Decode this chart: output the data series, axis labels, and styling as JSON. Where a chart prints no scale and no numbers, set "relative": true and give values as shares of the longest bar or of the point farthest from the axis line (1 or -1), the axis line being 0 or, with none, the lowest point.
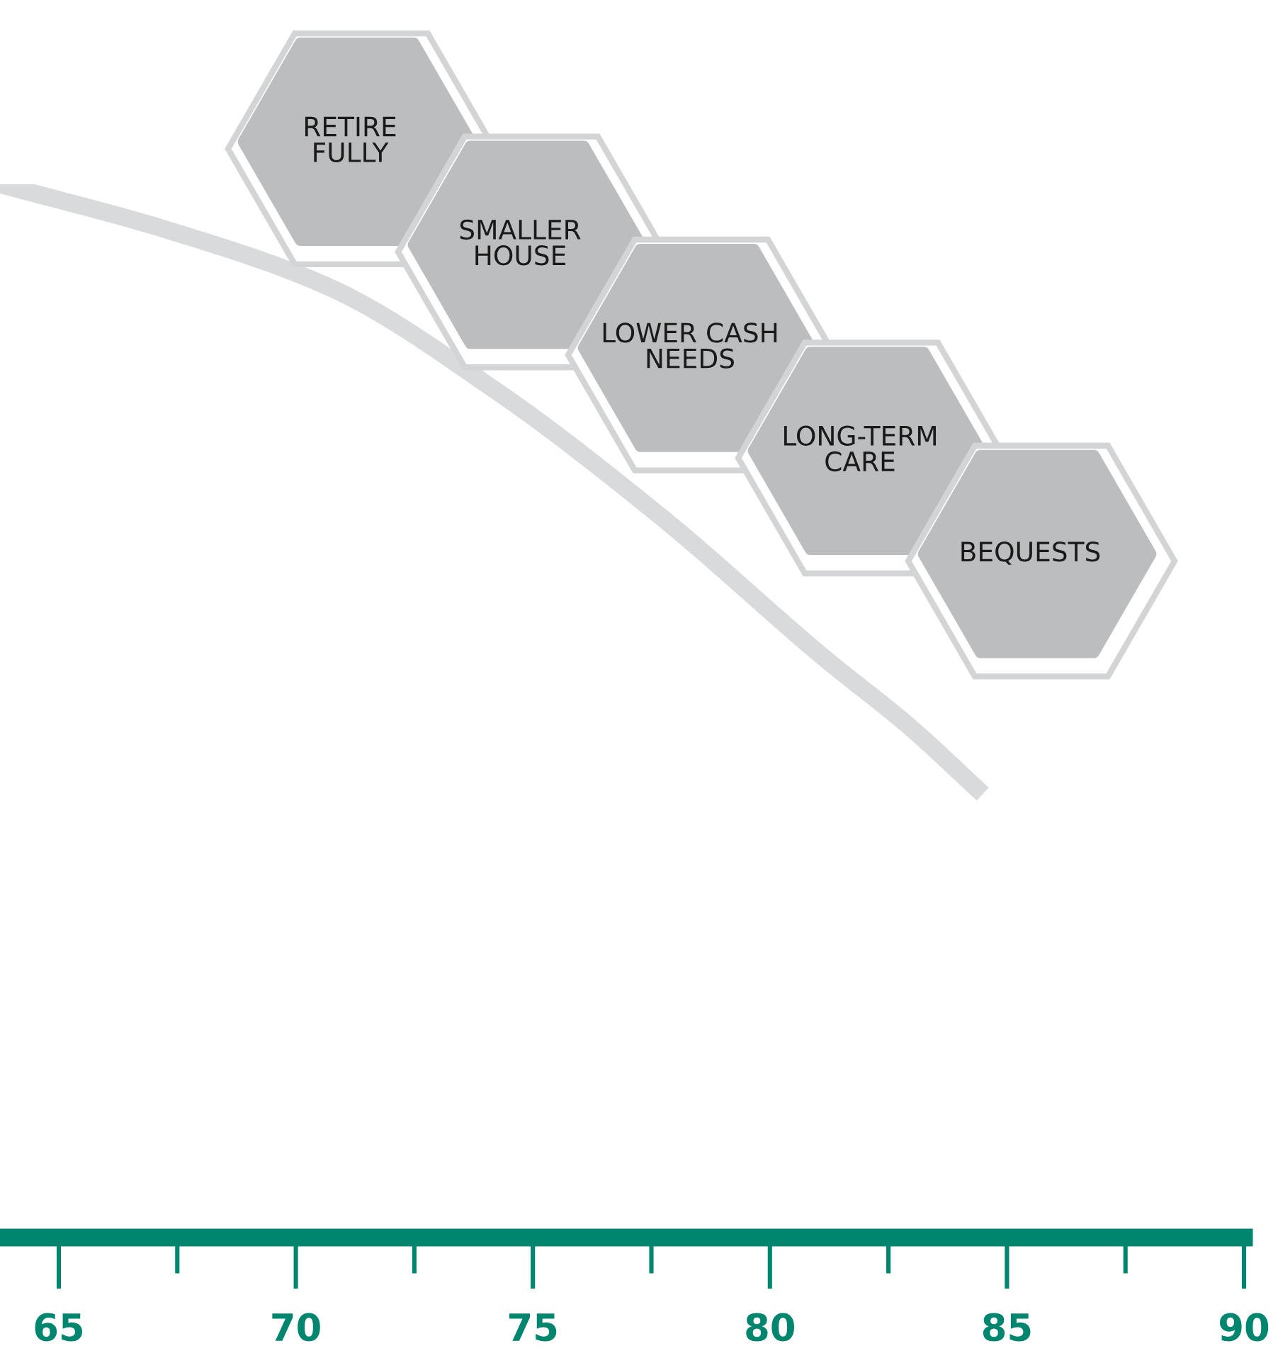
{
  "chart_data": {
    "type": "line",
    "relative": true,
    "x": [
      63.76,
      67.26,
      70.72,
      74.22,
      77.71,
      81.18,
      82.92,
      84.49
    ],
    "series": [
      {
        "color": "#d9dadb",
        "values": [
          1.0,
          0.957,
          0.902,
          0.804,
          0.684,
          0.549,
          0.486,
          0.421
        ]
      }
    ],
    "xlim": [
      63.76,
      90
    ],
    "xticks": [
      65,
      70,
      75,
      80,
      85,
      90
    ],
    "tick_labels": "x",
    "grid": false,
    "legend": false,
    "marker": "none",
    "line_style": "solid",
    "annotations": [
      "RETIRE\nFULLY",
      "SMALLER\nHOUSE",
      "LOWER CASH\nNEEDS",
      "LONG-TERM\nCARE",
      "BEQUESTS"
    ]
  }
}
